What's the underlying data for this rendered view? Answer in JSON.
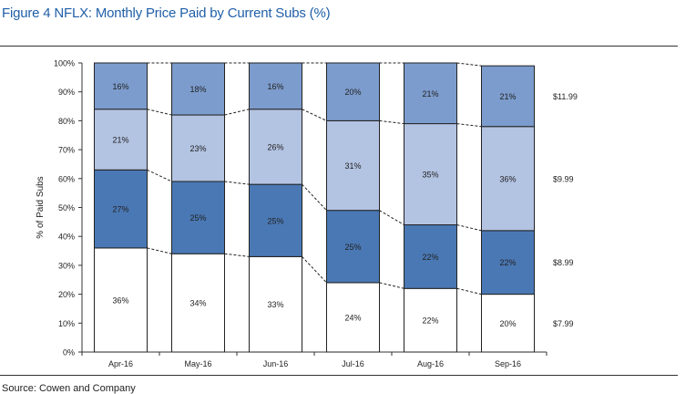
{
  "title": "Figure 4 NFLX: Monthly Price Paid by Current Subs (%)",
  "source": "Source: Cowen and Company",
  "colors": {
    "title": "#1f5fa8",
    "seg_7_99": "#ffffff",
    "seg_8_99": "#4a78b4",
    "seg_9_99": "#b3c3e2",
    "seg_11_99": "#7c9ccd",
    "stroke": "#222222"
  },
  "chart_data": {
    "type": "bar",
    "stacked": true,
    "categories": [
      "Apr-16",
      "May-16",
      "Jun-16",
      "Jul-16",
      "Aug-16",
      "Sep-16"
    ],
    "ylabel": "% of Paid Subs",
    "ylim": [
      0,
      100
    ],
    "yticks": [
      "0%",
      "10%",
      "20%",
      "30%",
      "40%",
      "50%",
      "60%",
      "70%",
      "80%",
      "90%",
      "100%"
    ],
    "legend_placement": "right",
    "connector_lines": "dashed",
    "series": [
      {
        "name": "$7.99",
        "values": [
          36,
          34,
          33,
          24,
          22,
          20
        ],
        "labels": [
          "36%",
          "34%",
          "33%",
          "24%",
          "22%",
          "20%"
        ],
        "colorKey": "seg_7_99"
      },
      {
        "name": "$8.99",
        "values": [
          27,
          25,
          25,
          25,
          22,
          22
        ],
        "labels": [
          "27%",
          "25%",
          "25%",
          "25%",
          "22%",
          "22%"
        ],
        "colorKey": "seg_8_99"
      },
      {
        "name": "$9.99",
        "values": [
          21,
          23,
          26,
          31,
          35,
          36
        ],
        "labels": [
          "21%",
          "23%",
          "26%",
          "31%",
          "35%",
          "36%"
        ],
        "colorKey": "seg_9_99"
      },
      {
        "name": "$11.99",
        "values": [
          16,
          18,
          16,
          20,
          21,
          21
        ],
        "labels": [
          "16%",
          "18%",
          "16%",
          "20%",
          "21%",
          "21%"
        ],
        "colorKey": "seg_11_99"
      }
    ]
  }
}
